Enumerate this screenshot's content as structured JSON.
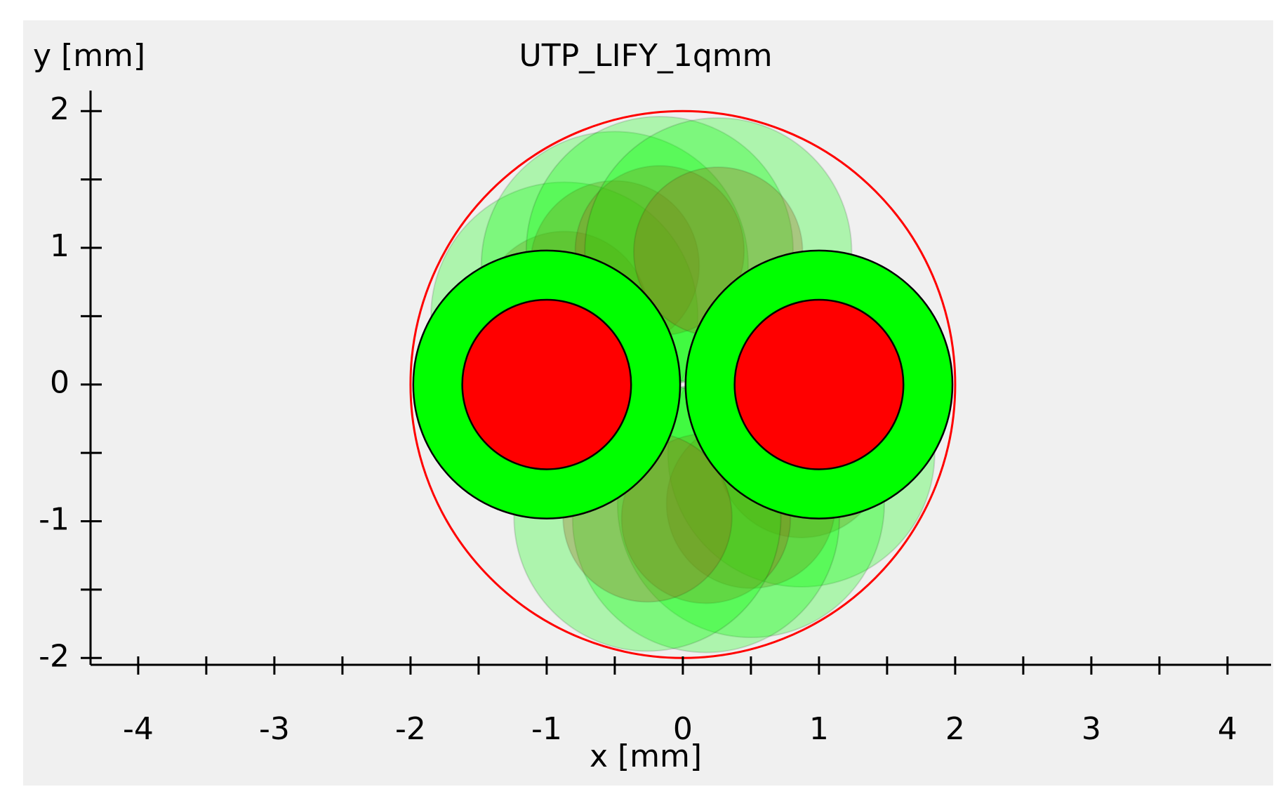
{
  "chart_data": {
    "type": "cable",
    "title": "UTP_LIFY_1qmm",
    "xlabel": "x [mm]",
    "ylabel": "y [mm]",
    "xlim": [
      -4.35,
      4.32
    ],
    "ylim": [
      -2.05,
      2.15
    ],
    "xticks": [
      -4,
      -3,
      -2,
      -1,
      0,
      1,
      2,
      3,
      4
    ],
    "yticks": [
      -2,
      -1,
      0,
      1,
      2
    ],
    "xminorticks": [
      -3.5,
      -2.5,
      -1.5,
      -0.5,
      0.5,
      1.5,
      2.5,
      3.5
    ],
    "yminorticks": [
      -1.5,
      -0.5,
      0.5,
      1.5
    ],
    "jacket": {
      "x": 0,
      "y": 0,
      "r": 2,
      "color": "#ff0000"
    },
    "insulation_color": "#00ff00",
    "conductor_color": "#ff0000",
    "ghost_conductor_color": "#a0601a",
    "conductors": [
      {
        "x": -1,
        "y": 0,
        "r_insulation": 0.98,
        "r_conductor": 0.62
      },
      {
        "x": 1,
        "y": 0,
        "r_insulation": 0.98,
        "r_conductor": 0.62
      }
    ],
    "ghosts": [
      {
        "x": -0.87,
        "y": 0.5
      },
      {
        "x": -0.5,
        "y": 0.87
      },
      {
        "x": -0.17,
        "y": 0.98
      },
      {
        "x": 0.26,
        "y": 0.97
      },
      {
        "x": 0.87,
        "y": -0.5
      },
      {
        "x": 0.5,
        "y": -0.87
      },
      {
        "x": 0.17,
        "y": -0.98
      },
      {
        "x": -0.26,
        "y": -0.97
      }
    ]
  }
}
